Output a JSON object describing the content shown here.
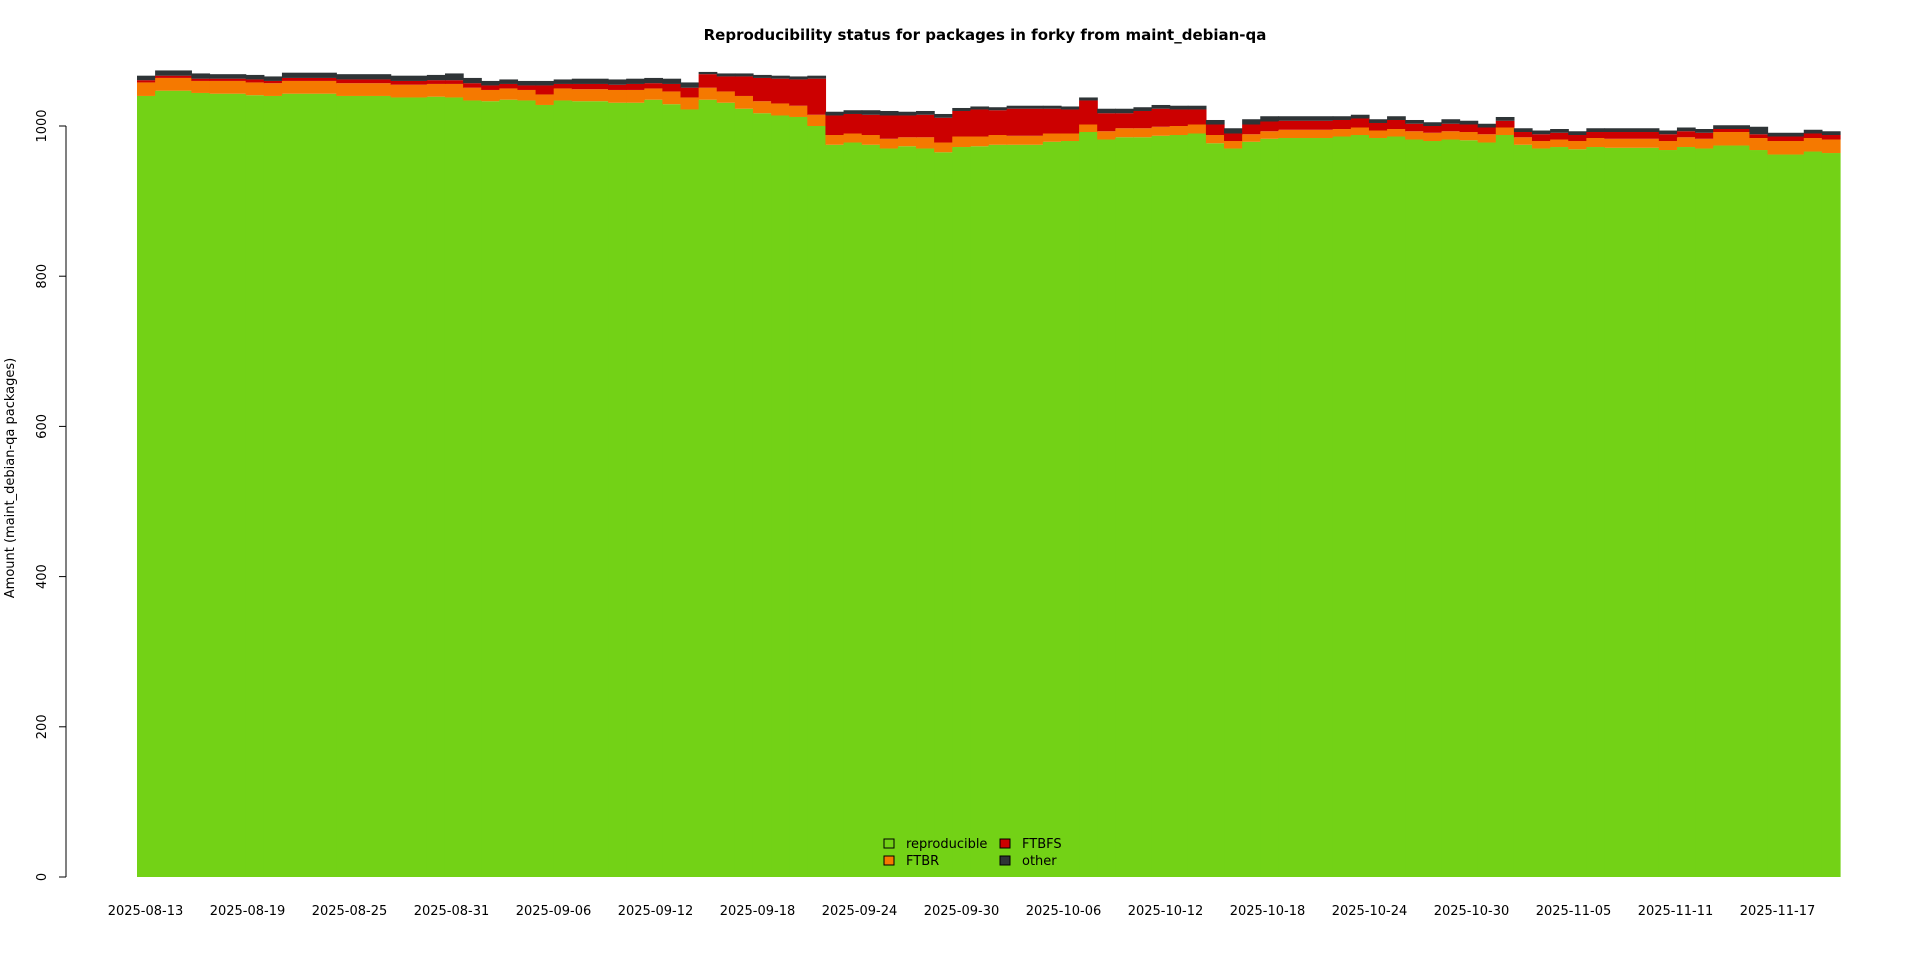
{
  "chart_data": {
    "type": "area",
    "stacked": true,
    "title": "Reproducibility status for packages in forky from maint_debian-qa",
    "ylabel": "Amount (maint_debian-qa packages)",
    "xlabel": "",
    "ylim": [
      0,
      1080
    ],
    "y_ticks": [
      0,
      200,
      400,
      600,
      800,
      1000
    ],
    "x_ticks": [
      "2025-08-13",
      "2025-08-19",
      "2025-08-25",
      "2025-08-31",
      "2025-09-06",
      "2025-09-12",
      "2025-09-18",
      "2025-09-24",
      "2025-09-30",
      "2025-10-06",
      "2025-10-12",
      "2025-10-18",
      "2025-10-24",
      "2025-10-30",
      "2025-11-05",
      "2025-11-11",
      "2025-11-17"
    ],
    "x_start": "2025-08-13",
    "grid": false,
    "legend_position": "bottom-center",
    "colors": {
      "reproducible": "#73d216",
      "FTBR": "#f57900",
      "FTBFS": "#cc0000",
      "other": "#2e3436"
    },
    "legend": [
      {
        "key": "reproducible",
        "label": "reproducible"
      },
      {
        "key": "FTBR",
        "label": "FTBR"
      },
      {
        "key": "FTBFS",
        "label": "FTBFS"
      },
      {
        "key": "other",
        "label": "other"
      }
    ],
    "segments": [
      {
        "days": 1,
        "reproducible": 1040,
        "FTBR": 18,
        "FTBFS": 3,
        "other": 6
      },
      {
        "days": 2,
        "reproducible": 1047,
        "FTBR": 17,
        "FTBFS": 3,
        "other": 7
      },
      {
        "days": 1,
        "reproducible": 1044,
        "FTBR": 16,
        "FTBFS": 3,
        "other": 7
      },
      {
        "days": 2,
        "reproducible": 1043,
        "FTBR": 17,
        "FTBFS": 3,
        "other": 6
      },
      {
        "days": 1,
        "reproducible": 1041,
        "FTBR": 17,
        "FTBFS": 4,
        "other": 6
      },
      {
        "days": 1,
        "reproducible": 1040,
        "FTBR": 17,
        "FTBFS": 3,
        "other": 6
      },
      {
        "days": 3,
        "reproducible": 1043,
        "FTBR": 17,
        "FTBFS": 4,
        "other": 7
      },
      {
        "days": 3,
        "reproducible": 1040,
        "FTBR": 17,
        "FTBFS": 5,
        "other": 7
      },
      {
        "days": 2,
        "reproducible": 1038,
        "FTBR": 17,
        "FTBFS": 5,
        "other": 7
      },
      {
        "days": 1,
        "reproducible": 1039,
        "FTBR": 17,
        "FTBFS": 5,
        "other": 7
      },
      {
        "days": 1,
        "reproducible": 1038,
        "FTBR": 18,
        "FTBFS": 5,
        "other": 9
      },
      {
        "days": 1,
        "reproducible": 1034,
        "FTBR": 17,
        "FTBFS": 6,
        "other": 7
      },
      {
        "days": 1,
        "reproducible": 1033,
        "FTBR": 15,
        "FTBFS": 6,
        "other": 6
      },
      {
        "days": 1,
        "reproducible": 1035,
        "FTBR": 15,
        "FTBFS": 6,
        "other": 6
      },
      {
        "days": 1,
        "reproducible": 1034,
        "FTBR": 14,
        "FTBFS": 6,
        "other": 6
      },
      {
        "days": 1,
        "reproducible": 1028,
        "FTBR": 14,
        "FTBFS": 12,
        "other": 6
      },
      {
        "days": 1,
        "reproducible": 1034,
        "FTBR": 16,
        "FTBFS": 6,
        "other": 6
      },
      {
        "days": 2,
        "reproducible": 1033,
        "FTBR": 16,
        "FTBFS": 7,
        "other": 7
      },
      {
        "days": 1,
        "reproducible": 1031,
        "FTBR": 17,
        "FTBFS": 7,
        "other": 7
      },
      {
        "days": 1,
        "reproducible": 1031,
        "FTBR": 17,
        "FTBFS": 8,
        "other": 7
      },
      {
        "days": 1,
        "reproducible": 1035,
        "FTBR": 15,
        "FTBFS": 7,
        "other": 7
      },
      {
        "days": 1,
        "reproducible": 1029,
        "FTBR": 17,
        "FTBFS": 10,
        "other": 7
      },
      {
        "days": 1,
        "reproducible": 1022,
        "FTBR": 16,
        "FTBFS": 13,
        "other": 7
      },
      {
        "days": 1,
        "reproducible": 1035,
        "FTBR": 16,
        "FTBFS": 18,
        "other": 3
      },
      {
        "days": 1,
        "reproducible": 1031,
        "FTBR": 15,
        "FTBFS": 20,
        "other": 4
      },
      {
        "days": 1,
        "reproducible": 1023,
        "FTBR": 17,
        "FTBFS": 26,
        "other": 4
      },
      {
        "days": 1,
        "reproducible": 1017,
        "FTBR": 16,
        "FTBFS": 31,
        "other": 4
      },
      {
        "days": 1,
        "reproducible": 1014,
        "FTBR": 16,
        "FTBFS": 33,
        "other": 4
      },
      {
        "days": 1,
        "reproducible": 1012,
        "FTBR": 15,
        "FTBFS": 35,
        "other": 4
      },
      {
        "days": 1,
        "reproducible": 1000,
        "FTBR": 15,
        "FTBFS": 48,
        "other": 4
      },
      {
        "days": 1,
        "reproducible": 975,
        "FTBR": 13,
        "FTBFS": 26,
        "other": 5
      },
      {
        "days": 1,
        "reproducible": 978,
        "FTBR": 12,
        "FTBFS": 26,
        "other": 5
      },
      {
        "days": 1,
        "reproducible": 975,
        "FTBR": 13,
        "FTBFS": 27,
        "other": 6
      },
      {
        "days": 1,
        "reproducible": 970,
        "FTBR": 13,
        "FTBFS": 31,
        "other": 6
      },
      {
        "days": 1,
        "reproducible": 973,
        "FTBR": 12,
        "FTBFS": 29,
        "other": 5
      },
      {
        "days": 1,
        "reproducible": 970,
        "FTBR": 15,
        "FTBFS": 30,
        "other": 5
      },
      {
        "days": 1,
        "reproducible": 965,
        "FTBR": 13,
        "FTBFS": 33,
        "other": 5
      },
      {
        "days": 1,
        "reproducible": 972,
        "FTBR": 14,
        "FTBFS": 34,
        "other": 4
      },
      {
        "days": 1,
        "reproducible": 973,
        "FTBR": 13,
        "FTBFS": 36,
        "other": 4
      },
      {
        "days": 1,
        "reproducible": 975,
        "FTBR": 13,
        "FTBFS": 33,
        "other": 4
      },
      {
        "days": 2,
        "reproducible": 975,
        "FTBR": 12,
        "FTBFS": 36,
        "other": 4
      },
      {
        "days": 1,
        "reproducible": 979,
        "FTBR": 11,
        "FTBFS": 33,
        "other": 4
      },
      {
        "days": 1,
        "reproducible": 980,
        "FTBR": 10,
        "FTBFS": 32,
        "other": 4
      },
      {
        "days": 1,
        "reproducible": 992,
        "FTBR": 10,
        "FTBFS": 32,
        "other": 4
      },
      {
        "days": 1,
        "reproducible": 982,
        "FTBR": 11,
        "FTBFS": 24,
        "other": 6
      },
      {
        "days": 1,
        "reproducible": 985,
        "FTBR": 12,
        "FTBFS": 20,
        "other": 6
      },
      {
        "days": 1,
        "reproducible": 985,
        "FTBR": 12,
        "FTBFS": 23,
        "other": 5
      },
      {
        "days": 1,
        "reproducible": 987,
        "FTBR": 12,
        "FTBFS": 24,
        "other": 5
      },
      {
        "days": 1,
        "reproducible": 988,
        "FTBR": 12,
        "FTBFS": 22,
        "other": 5
      },
      {
        "days": 1,
        "reproducible": 990,
        "FTBR": 12,
        "FTBFS": 20,
        "other": 5
      },
      {
        "days": 1,
        "reproducible": 977,
        "FTBR": 11,
        "FTBFS": 14,
        "other": 6
      },
      {
        "days": 1,
        "reproducible": 970,
        "FTBR": 10,
        "FTBFS": 10,
        "other": 7
      },
      {
        "days": 1,
        "reproducible": 979,
        "FTBR": 10,
        "FTBFS": 13,
        "other": 7
      },
      {
        "days": 1,
        "reproducible": 983,
        "FTBR": 10,
        "FTBFS": 13,
        "other": 7
      },
      {
        "days": 3,
        "reproducible": 984,
        "FTBR": 11,
        "FTBFS": 12,
        "other": 6
      },
      {
        "days": 1,
        "reproducible": 986,
        "FTBR": 10,
        "FTBFS": 12,
        "other": 5
      },
      {
        "days": 1,
        "reproducible": 988,
        "FTBR": 10,
        "FTBFS": 12,
        "other": 5
      },
      {
        "days": 1,
        "reproducible": 984,
        "FTBR": 10,
        "FTBFS": 10,
        "other": 5
      },
      {
        "days": 1,
        "reproducible": 986,
        "FTBR": 10,
        "FTBFS": 12,
        "other": 5
      },
      {
        "days": 1,
        "reproducible": 982,
        "FTBR": 11,
        "FTBFS": 10,
        "other": 5
      },
      {
        "days": 1,
        "reproducible": 980,
        "FTBR": 11,
        "FTBFS": 9,
        "other": 5
      },
      {
        "days": 1,
        "reproducible": 982,
        "FTBR": 11,
        "FTBFS": 10,
        "other": 6
      },
      {
        "days": 1,
        "reproducible": 981,
        "FTBR": 11,
        "FTBFS": 10,
        "other": 5
      },
      {
        "days": 1,
        "reproducible": 978,
        "FTBR": 11,
        "FTBFS": 9,
        "other": 5
      },
      {
        "days": 1,
        "reproducible": 988,
        "FTBR": 10,
        "FTBFS": 9,
        "other": 5
      },
      {
        "days": 1,
        "reproducible": 975,
        "FTBR": 10,
        "FTBFS": 7,
        "other": 5
      },
      {
        "days": 1,
        "reproducible": 970,
        "FTBR": 10,
        "FTBFS": 9,
        "other": 5
      },
      {
        "days": 1,
        "reproducible": 972,
        "FTBR": 10,
        "FTBFS": 9,
        "other": 5
      },
      {
        "days": 1,
        "reproducible": 969,
        "FTBR": 11,
        "FTBFS": 8,
        "other": 5
      },
      {
        "days": 1,
        "reproducible": 972,
        "FTBR": 12,
        "FTBFS": 8,
        "other": 5
      },
      {
        "days": 3,
        "reproducible": 971,
        "FTBR": 12,
        "FTBFS": 9,
        "other": 5
      },
      {
        "days": 1,
        "reproducible": 968,
        "FTBR": 12,
        "FTBFS": 9,
        "other": 5
      },
      {
        "days": 1,
        "reproducible": 972,
        "FTBR": 13,
        "FTBFS": 8,
        "other": 5
      },
      {
        "days": 1,
        "reproducible": 970,
        "FTBR": 13,
        "FTBFS": 8,
        "other": 5
      },
      {
        "days": 2,
        "reproducible": 974,
        "FTBR": 18,
        "FTBFS": 4,
        "other": 5
      },
      {
        "days": 1,
        "reproducible": 968,
        "FTBR": 16,
        "FTBFS": 5,
        "other": 10
      },
      {
        "days": 2,
        "reproducible": 962,
        "FTBR": 18,
        "FTBFS": 6,
        "other": 5
      },
      {
        "days": 1,
        "reproducible": 966,
        "FTBR": 18,
        "FTBFS": 6,
        "other": 5
      },
      {
        "days": 1,
        "reproducible": 964,
        "FTBR": 18,
        "FTBFS": 6,
        "other": 5
      }
    ]
  }
}
